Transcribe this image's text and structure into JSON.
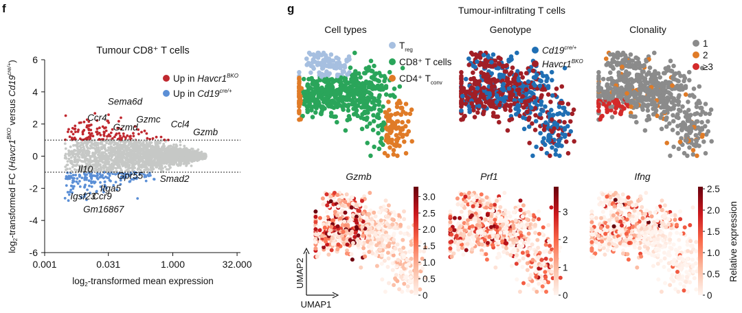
{
  "panel_f": {
    "label": "f",
    "chart_data": {
      "type": "scatter",
      "title": "Tumour CD8⁺ T cells",
      "xlabel": "log₂-transformed mean expression",
      "ylabel": "log₂-transformed FC (Havcr1ᴮᴷᴼ versus Cd19ᶜʳᵉ/⁺)",
      "x_ticks": [
        "0.001",
        "0.031",
        "1.000",
        "32.000"
      ],
      "x_tick_values": [
        0.001,
        0.031,
        1.0,
        32.0
      ],
      "y_ticks": [
        -6,
        -4,
        -2,
        0,
        2,
        4,
        6
      ],
      "ylim": [
        -6,
        6
      ],
      "thresholds": [
        1,
        -1
      ],
      "legend": [
        {
          "name": "Up in",
          "gene": "Havcr1",
          "sup": "BKO",
          "color": "#c0282f"
        },
        {
          "name": "Up in",
          "gene": "Cd19",
          "sup": "cre/+",
          "color": "#5b8fd6"
        }
      ],
      "labeled_genes": [
        {
          "gene": "Sema6d",
          "x": 0.03,
          "y": 3.2
        },
        {
          "gene": "Ccr4",
          "x": 0.01,
          "y": 2.2
        },
        {
          "gene": "Gzmc",
          "x": 0.14,
          "y": 2.1
        },
        {
          "gene": "Gzmd",
          "x": 0.04,
          "y": 1.6
        },
        {
          "gene": "Ccl4",
          "x": 0.9,
          "y": 1.8
        },
        {
          "gene": "Gzmb",
          "x": 3.0,
          "y": 1.3
        },
        {
          "gene": "Il10",
          "x": 0.006,
          "y": -1.0
        },
        {
          "gene": "Gpr55",
          "x": 0.05,
          "y": -1.4
        },
        {
          "gene": "Smad2",
          "x": 0.5,
          "y": -1.6
        },
        {
          "gene": "Itga5",
          "x": 0.02,
          "y": -2.2
        },
        {
          "gene": "Igsf23",
          "x": 0.004,
          "y": -2.7
        },
        {
          "gene": "Ccr9",
          "x": 0.013,
          "y": -2.7
        },
        {
          "gene": "Gm16867",
          "x": 0.008,
          "y": -3.5
        }
      ],
      "up_color": "#c0282f",
      "down_color": "#5b8fd6",
      "ns_color": "#c6c8c6"
    }
  },
  "panel_g": {
    "label": "g",
    "title": "Tumour-infiltrating T cells",
    "umap_panels": [
      {
        "title": "Cell types",
        "legend": [
          {
            "name": "T",
            "sub": "reg",
            "color": "#a6bfe0"
          },
          {
            "name": "CD8⁺ T cells",
            "sub": "",
            "color": "#2aa55a"
          },
          {
            "name": "CD4⁺ T",
            "sub": "conv",
            "color": "#e07b27"
          }
        ]
      },
      {
        "title": "Genotype",
        "legend": [
          {
            "name": "Cd19",
            "sup": "cre/+",
            "color": "#1f6fb4"
          },
          {
            "name": "Havcr1",
            "sup": "BKO",
            "color": "#a11f26"
          }
        ]
      },
      {
        "title": "Clonality",
        "legend": [
          {
            "name": "1",
            "color": "#8b8b8b"
          },
          {
            "name": "2",
            "color": "#e07b27"
          },
          {
            "name": "≥3",
            "color": "#d42a2a"
          }
        ]
      }
    ],
    "expression_panels": [
      {
        "gene": "Gzmb",
        "colorbar_ticks": [
          "3.0",
          "2.5",
          "2.0",
          "1.5",
          "1.0",
          "0.5",
          "0"
        ],
        "colorbar_values": [
          3.0,
          2.5,
          2.0,
          1.5,
          1.0,
          0.5,
          0
        ],
        "max": 3.3
      },
      {
        "gene": "Prf1",
        "colorbar_ticks": [
          "3",
          "2",
          "1",
          "0"
        ],
        "colorbar_values": [
          3,
          2,
          1,
          0
        ],
        "max": 3.9
      },
      {
        "gene": "Ifng",
        "colorbar_ticks": [
          "2.5",
          "2.0",
          "1.5",
          "1.0",
          "0.5",
          "0"
        ],
        "colorbar_values": [
          2.5,
          2.0,
          1.5,
          1.0,
          0.5,
          0
        ],
        "max": 2.55
      }
    ],
    "colorbar_label": "Relative expression",
    "axis_x": "UMAP1",
    "axis_y": "UMAP2"
  }
}
